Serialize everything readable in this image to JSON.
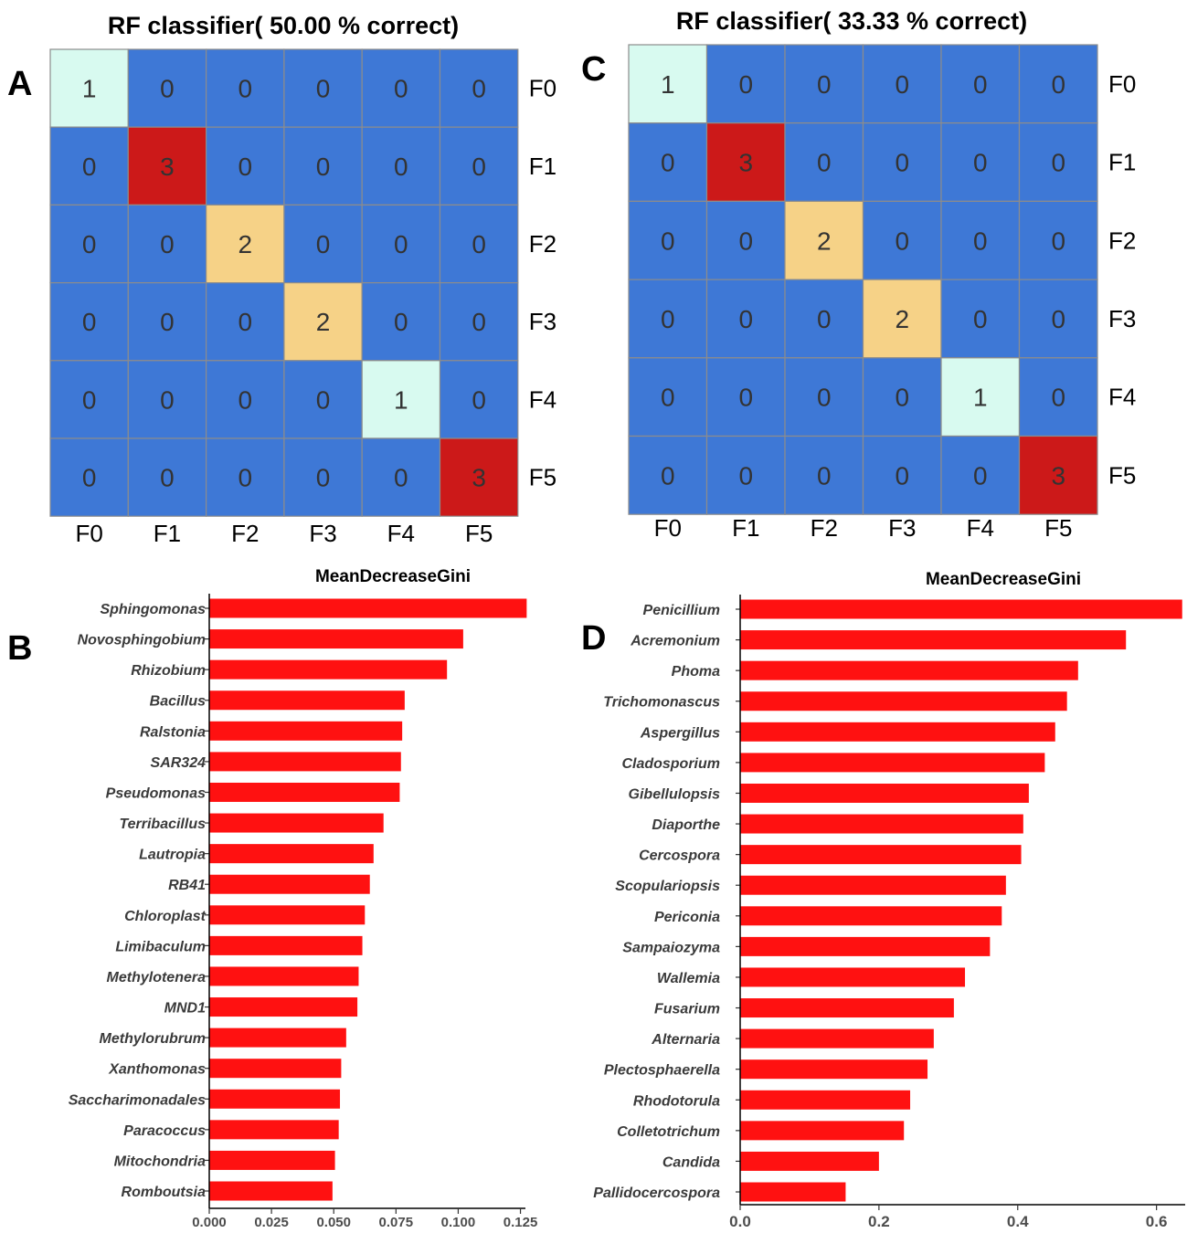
{
  "colors": {
    "zero": "#3e78d6",
    "one": "#d8faf0",
    "two": "#f6d287",
    "three": "#cc1919",
    "grid": "#8c8c8c",
    "bar": "#ff1111"
  },
  "chart_data": [
    {
      "panel": "A",
      "type": "heatmap",
      "title": "RF classifier( 50.00 % correct)",
      "xlabels": [
        "F0",
        "F1",
        "F2",
        "F3",
        "F4",
        "F5"
      ],
      "ylabels": [
        "F0",
        "F1",
        "F2",
        "F3",
        "F4",
        "F5"
      ],
      "matrix": [
        [
          1,
          0,
          0,
          0,
          0,
          0
        ],
        [
          0,
          3,
          0,
          0,
          0,
          0
        ],
        [
          0,
          0,
          2,
          0,
          0,
          0
        ],
        [
          0,
          0,
          0,
          2,
          0,
          0
        ],
        [
          0,
          0,
          0,
          0,
          1,
          0
        ],
        [
          0,
          0,
          0,
          0,
          0,
          3
        ]
      ]
    },
    {
      "panel": "C",
      "type": "heatmap",
      "title": "RF classifier( 33.33 % correct)",
      "xlabels": [
        "F0",
        "F1",
        "F2",
        "F3",
        "F4",
        "F5"
      ],
      "ylabels": [
        "F0",
        "F1",
        "F2",
        "F3",
        "F4",
        "F5"
      ],
      "matrix": [
        [
          1,
          0,
          0,
          0,
          0,
          0
        ],
        [
          0,
          3,
          0,
          0,
          0,
          0
        ],
        [
          0,
          0,
          2,
          0,
          0,
          0
        ],
        [
          0,
          0,
          0,
          2,
          0,
          0
        ],
        [
          0,
          0,
          0,
          0,
          1,
          0
        ],
        [
          0,
          0,
          0,
          0,
          0,
          3
        ]
      ]
    },
    {
      "panel": "B",
      "type": "bar",
      "orientation": "horizontal",
      "title": "MeanDecreaseGini",
      "categories": [
        "Sphingomonas",
        "Novosphingobium",
        "Rhizobium",
        "Bacillus",
        "Ralstonia",
        "SAR324",
        "Pseudomonas",
        "Terribacillus",
        "Lautropia",
        "RB41",
        "Chloroplast",
        "Limibaculum",
        "Methylotenera",
        "MND1",
        "Methylorubrum",
        "Xanthomonas",
        "Saccharimonadales",
        "Paracoccus",
        "Mitochondria",
        "Romboutsia"
      ],
      "values": [
        0.1275,
        0.102,
        0.0955,
        0.0785,
        0.0775,
        0.077,
        0.0765,
        0.07,
        0.066,
        0.0645,
        0.0625,
        0.0615,
        0.06,
        0.0595,
        0.055,
        0.053,
        0.0525,
        0.052,
        0.0505,
        0.0495
      ],
      "xticks": [
        0.0,
        0.025,
        0.05,
        0.075,
        0.1,
        0.125
      ],
      "xtick_labels": [
        "0.000",
        "0.025",
        "0.050",
        "0.075",
        "0.100",
        "0.125"
      ],
      "xlim": [
        0,
        0.127
      ]
    },
    {
      "panel": "D",
      "type": "bar",
      "orientation": "horizontal",
      "title": "MeanDecreaseGini",
      "categories": [
        "Penicillium",
        "Acremonium",
        "Phoma",
        "Trichomonascus",
        "Aspergillus",
        "Cladosporium",
        "Gibellulopsis",
        "Diaporthe",
        "Cercospora",
        "Scopulariopsis",
        "Periconia",
        "Sampaiozyma",
        "Wallemia",
        "Fusarium",
        "Alternaria",
        "Plectosphaerella",
        "Rhodotorula",
        "Colletotrichum",
        "Candida",
        "Pallidocercospora"
      ],
      "values": [
        0.637,
        0.556,
        0.487,
        0.471,
        0.454,
        0.439,
        0.416,
        0.408,
        0.405,
        0.383,
        0.377,
        0.36,
        0.324,
        0.308,
        0.279,
        0.27,
        0.245,
        0.236,
        0.2,
        0.152
      ],
      "xticks": [
        0.0,
        0.2,
        0.4,
        0.6
      ],
      "xtick_labels": [
        "0.0",
        "0.2",
        "0.4",
        "0.6"
      ],
      "xlim": [
        0,
        0.64
      ]
    }
  ]
}
